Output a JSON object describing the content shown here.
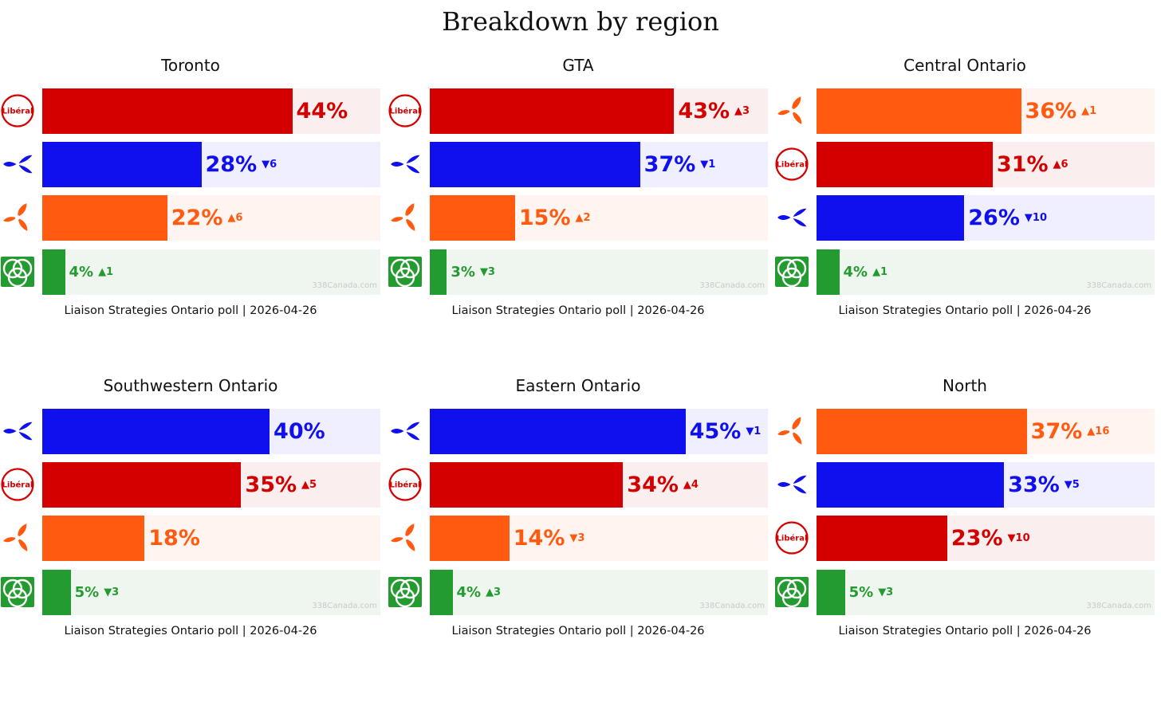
{
  "title": "Breakdown by region",
  "parties": {
    "lib": {
      "color": "#d40000",
      "bg": "#fbeeee",
      "logo": "liberal-logo",
      "logo_text": "Libéral"
    },
    "pc": {
      "color": "#1010ee",
      "bg": "#efefff",
      "logo": "pc-trillium-logo"
    },
    "ndp": {
      "color": "#ff5a0f",
      "bg": "#fff4ef",
      "logo": "ndp-trillium-logo"
    },
    "grn": {
      "color": "#249b30",
      "bg": "#eff6ef",
      "logo": "green-trillium-logo"
    }
  },
  "chart_data": [
    {
      "type": "bar",
      "title": "Toronto",
      "categories": [
        "Liberal",
        "PC",
        "NDP",
        "Green"
      ],
      "values": [
        44,
        28,
        22,
        4
      ],
      "xlim": [
        0,
        59.5
      ],
      "rows": [
        {
          "party": "lib",
          "value": 44,
          "label": "44%",
          "change": ""
        },
        {
          "party": "pc",
          "value": 28,
          "label": "28%",
          "change": "▼6"
        },
        {
          "party": "ndp",
          "value": 22,
          "label": "22%",
          "change": "▲6"
        },
        {
          "party": "grn",
          "value": 4,
          "label": "4%",
          "change": "▲1"
        }
      ],
      "watermark": "338Canada.com",
      "source": "Liaison Strategies Ontario poll | 2026-04-26"
    },
    {
      "type": "bar",
      "title": "GTA",
      "categories": [
        "Liberal",
        "PC",
        "NDP",
        "Green"
      ],
      "values": [
        43,
        37,
        15,
        3
      ],
      "xlim": [
        0,
        59.5
      ],
      "rows": [
        {
          "party": "lib",
          "value": 43,
          "label": "43%",
          "change": "▲3"
        },
        {
          "party": "pc",
          "value": 37,
          "label": "37%",
          "change": "▼1"
        },
        {
          "party": "ndp",
          "value": 15,
          "label": "15%",
          "change": "▲2"
        },
        {
          "party": "grn",
          "value": 3,
          "label": "3%",
          "change": "▼3"
        }
      ],
      "watermark": "338Canada.com",
      "source": "Liaison Strategies Ontario poll | 2026-04-26"
    },
    {
      "type": "bar",
      "title": "Central Ontario",
      "categories": [
        "NDP",
        "Liberal",
        "PC",
        "Green"
      ],
      "values": [
        36,
        31,
        26,
        4
      ],
      "xlim": [
        0,
        59.5
      ],
      "rows": [
        {
          "party": "ndp",
          "value": 36,
          "label": "36%",
          "change": "▲1"
        },
        {
          "party": "lib",
          "value": 31,
          "label": "31%",
          "change": "▲6"
        },
        {
          "party": "pc",
          "value": 26,
          "label": "26%",
          "change": "▼10"
        },
        {
          "party": "grn",
          "value": 4,
          "label": "4%",
          "change": "▲1"
        }
      ],
      "watermark": "338Canada.com",
      "source": "Liaison Strategies Ontario poll | 2026-04-26"
    },
    {
      "type": "bar",
      "title": "Southwestern Ontario",
      "categories": [
        "PC",
        "Liberal",
        "NDP",
        "Green"
      ],
      "values": [
        40,
        35,
        18,
        5
      ],
      "xlim": [
        0,
        59.5
      ],
      "rows": [
        {
          "party": "pc",
          "value": 40,
          "label": "40%",
          "change": ""
        },
        {
          "party": "lib",
          "value": 35,
          "label": "35%",
          "change": "▲5"
        },
        {
          "party": "ndp",
          "value": 18,
          "label": "18%",
          "change": ""
        },
        {
          "party": "grn",
          "value": 5,
          "label": "5%",
          "change": "▼3"
        }
      ],
      "watermark": "338Canada.com",
      "source": "Liaison Strategies Ontario poll | 2026-04-26"
    },
    {
      "type": "bar",
      "title": "Eastern Ontario",
      "categories": [
        "PC",
        "Liberal",
        "NDP",
        "Green"
      ],
      "values": [
        45,
        34,
        14,
        4
      ],
      "xlim": [
        0,
        59.5
      ],
      "rows": [
        {
          "party": "pc",
          "value": 45,
          "label": "45%",
          "change": "▼1"
        },
        {
          "party": "lib",
          "value": 34,
          "label": "34%",
          "change": "▲4"
        },
        {
          "party": "ndp",
          "value": 14,
          "label": "14%",
          "change": "▼3"
        },
        {
          "party": "grn",
          "value": 4,
          "label": "4%",
          "change": "▲3"
        }
      ],
      "watermark": "338Canada.com",
      "source": "Liaison Strategies Ontario poll | 2026-04-26"
    },
    {
      "type": "bar",
      "title": "North",
      "categories": [
        "NDP",
        "PC",
        "Liberal",
        "Green"
      ],
      "values": [
        37,
        33,
        23,
        5
      ],
      "xlim": [
        0,
        59.5
      ],
      "rows": [
        {
          "party": "ndp",
          "value": 37,
          "label": "37%",
          "change": "▲16"
        },
        {
          "party": "pc",
          "value": 33,
          "label": "33%",
          "change": "▼5"
        },
        {
          "party": "lib",
          "value": 23,
          "label": "23%",
          "change": "▼10"
        },
        {
          "party": "grn",
          "value": 5,
          "label": "5%",
          "change": "▼3"
        }
      ],
      "watermark": "338Canada.com",
      "source": "Liaison Strategies Ontario poll | 2026-04-26"
    }
  ]
}
